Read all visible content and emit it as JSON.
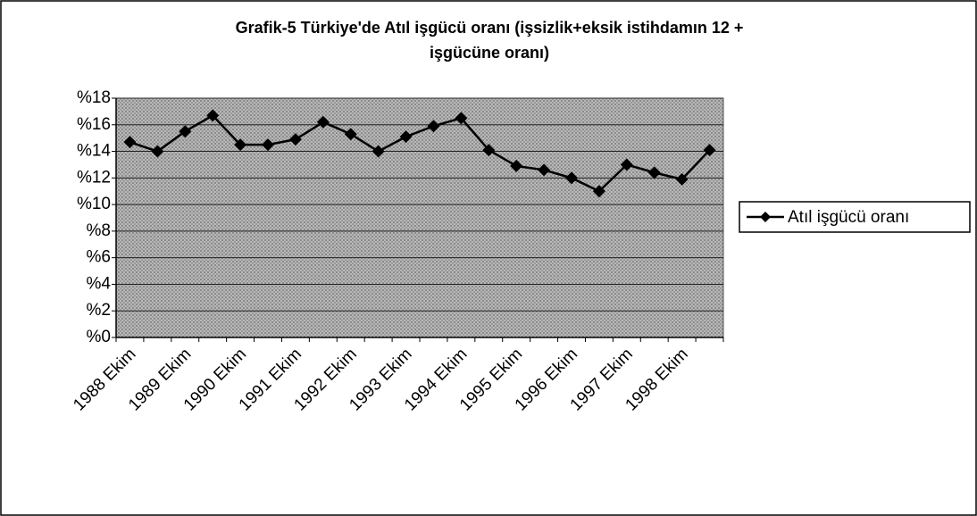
{
  "chart_data": {
    "type": "line",
    "title": [
      "Grafik-5 Türkiye'de Atıl işgücü oranı (işsizlik+eksik istihdamın 12 +",
      "işgücüne oranı)"
    ],
    "categories": [
      "1988 Ekim",
      null,
      "1989 Ekim",
      null,
      "1990 Ekim",
      null,
      "1991 Ekim",
      null,
      "1992 Ekim",
      null,
      "1993 Ekim",
      null,
      "1994 Ekim",
      null,
      "1995 Ekim",
      null,
      "1996 Ekim",
      null,
      "1997 Ekim",
      null,
      "1998 Ekim",
      null
    ],
    "series": [
      {
        "name": "Atıl işgücü oranı",
        "color": "#000000",
        "values": [
          14.7,
          14.0,
          15.5,
          16.7,
          14.5,
          14.5,
          14.9,
          16.2,
          15.3,
          14.0,
          15.1,
          15.9,
          16.5,
          14.1,
          12.9,
          12.6,
          12.0,
          11.0,
          13.0,
          12.4,
          11.9,
          14.1
        ]
      }
    ],
    "ylim": [
      0,
      18
    ],
    "yticks": [
      {
        "value": 0,
        "label": "%0"
      },
      {
        "value": 2,
        "label": "%2"
      },
      {
        "value": 4,
        "label": "%4"
      },
      {
        "value": 6,
        "label": "%6"
      },
      {
        "value": 8,
        "label": "%8"
      },
      {
        "value": 10,
        "label": "%10"
      },
      {
        "value": 12,
        "label": "%12"
      },
      {
        "value": 14,
        "label": "%14"
      },
      {
        "value": 16,
        "label": "%16"
      },
      {
        "value": 18,
        "label": "%18"
      }
    ],
    "grid": true,
    "legend": "right"
  }
}
